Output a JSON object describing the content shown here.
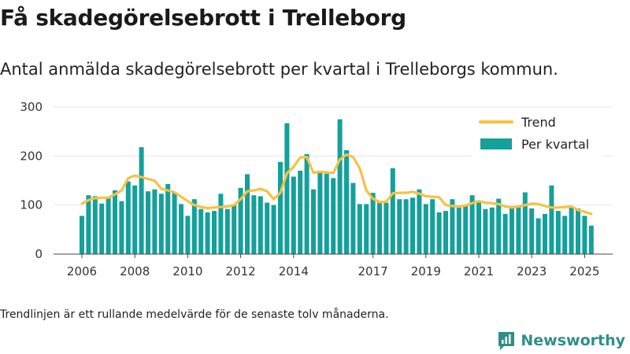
{
  "title": "Få skadegörelsebrott i Trelleborg",
  "subtitle": "Antal anmälda skadegörelsebrott per kvartal i Trelleborgs kommun.",
  "note": "Trendlinjen är ett rullande medelvärde för de senaste tolv månaderna.",
  "brand": "Newsworthy",
  "colors": {
    "bar": "#14a09b",
    "trend": "#f6c244",
    "grid": "#e6e6e6",
    "brand": "#2f8f89"
  },
  "chart_data": {
    "type": "bar",
    "ylim": [
      0,
      300
    ],
    "yticks": [
      0,
      100,
      200,
      300
    ],
    "xticks": [
      "2006",
      "2008",
      "2010",
      "2012",
      "2014",
      "2017",
      "2019",
      "2021",
      "2023",
      "2025"
    ],
    "legend_position": "top-right",
    "series": [
      {
        "name": "Per kvartal",
        "type": "bar",
        "values": [
          78,
          120,
          118,
          103,
          115,
          130,
          108,
          148,
          140,
          218,
          128,
          132,
          123,
          143,
          125,
          102,
          78,
          112,
          92,
          85,
          88,
          123,
          92,
          100,
          135,
          163,
          120,
          118,
          105,
          100,
          188,
          267,
          158,
          170,
          204,
          132,
          170,
          164,
          155,
          275,
          212,
          145,
          102,
          102,
          125,
          108,
          105,
          175,
          112,
          112,
          115,
          132,
          102,
          112,
          85,
          88,
          112,
          95,
          100,
          120,
          105,
          92,
          95,
          113,
          82,
          98,
          98,
          126,
          93,
          73,
          82,
          140,
          88,
          78,
          95,
          93,
          78,
          58
        ]
      },
      {
        "name": "Trend",
        "type": "line",
        "values": [
          103,
          110,
          114,
          115,
          115,
          122,
          130,
          155,
          160,
          157,
          153,
          150,
          133,
          130,
          126,
          117,
          108,
          100,
          96,
          94,
          95,
          96,
          97,
          100,
          112,
          128,
          130,
          133,
          128,
          112,
          125,
          165,
          178,
          197,
          198,
          166,
          168,
          167,
          165,
          193,
          203,
          198,
          175,
          130,
          113,
          106,
          107,
          124,
          125,
          125,
          127,
          123,
          118,
          117,
          116,
          100,
          98,
          97,
          99,
          104,
          108,
          105,
          104,
          102,
          97,
          95,
          97,
          100,
          103,
          102,
          98,
          95,
          95,
          96,
          97,
          90,
          86,
          82
        ]
      }
    ]
  }
}
